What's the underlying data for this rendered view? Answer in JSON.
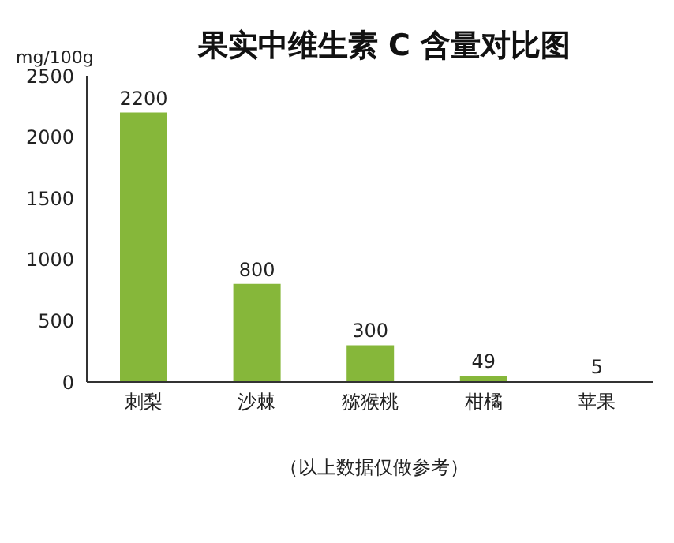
{
  "chart_data": {
    "type": "bar",
    "title": "果实中维生素 C 含量对比图",
    "ylabel": "mg/100g",
    "categories": [
      "刺梨",
      "沙棘",
      "猕猴桃",
      "柑橘",
      "苹果"
    ],
    "values": [
      2200,
      800,
      300,
      49,
      5
    ],
    "color": "#86b73a",
    "ylim": [
      0,
      2500
    ],
    "yticks": [
      0,
      500,
      1000,
      1500,
      2000,
      2500
    ],
    "grid": false,
    "data_labels": true,
    "annotations": [
      "（以上数据仅做参考）"
    ]
  }
}
